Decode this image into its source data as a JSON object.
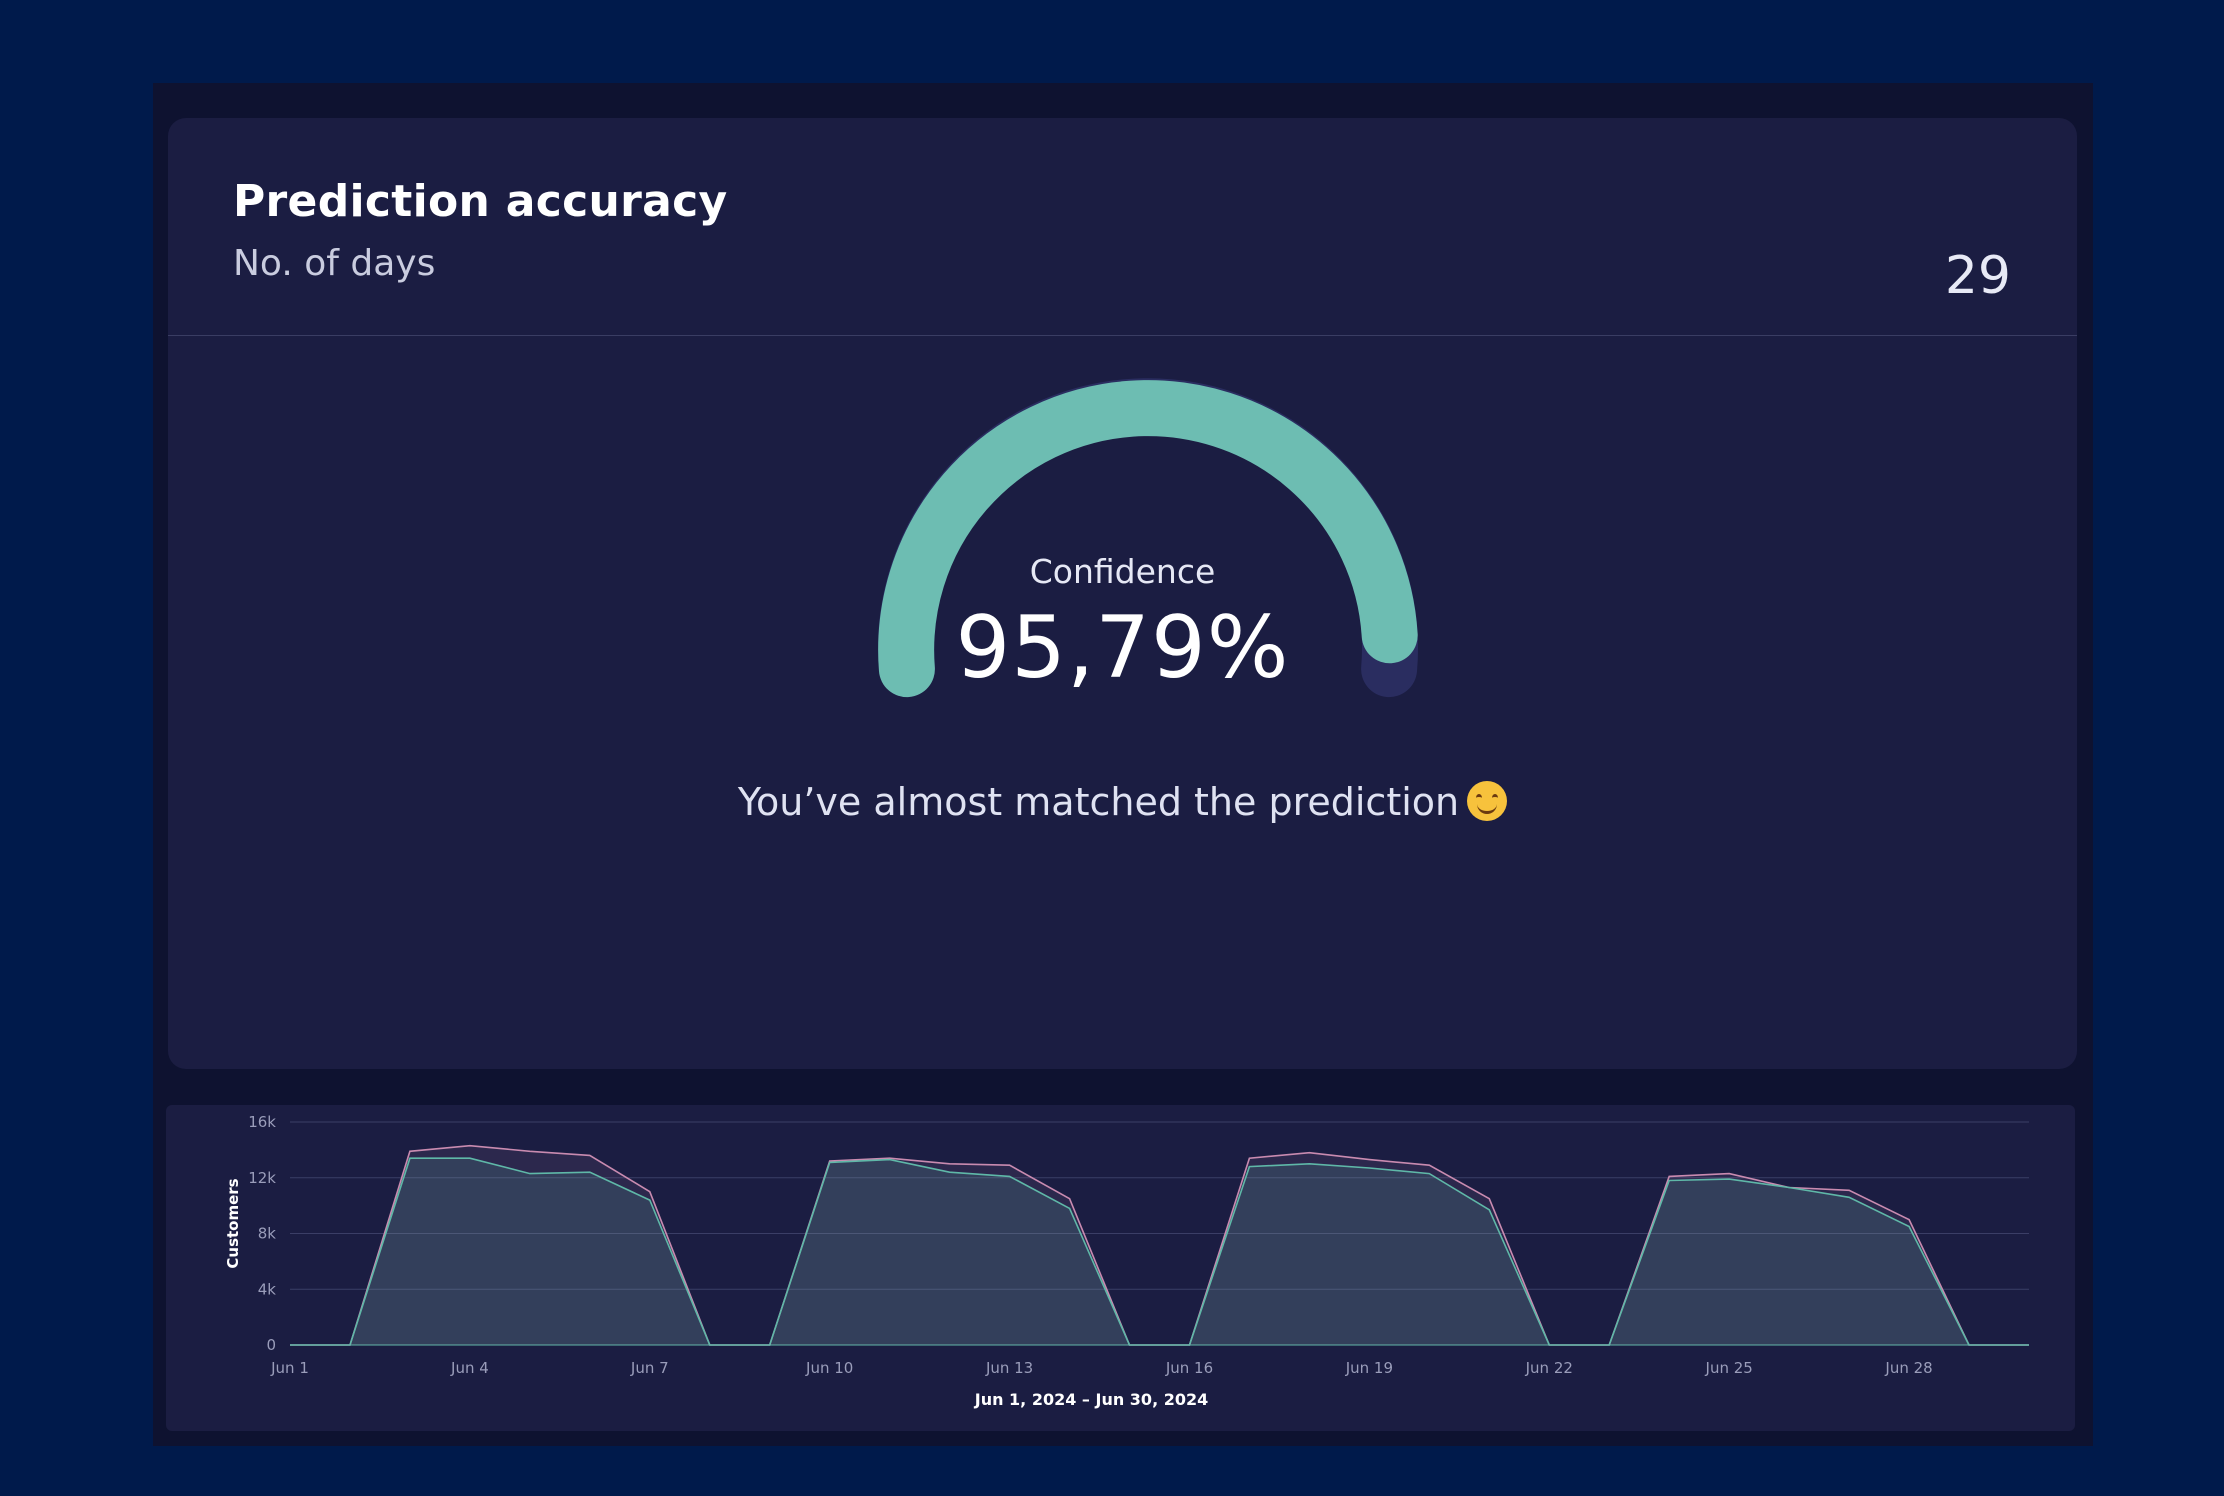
{
  "card": {
    "title": "Prediction accuracy",
    "subtitle": "No. of days",
    "days_value": "29"
  },
  "gauge": {
    "label": "Confidence",
    "value_text": "95,79%",
    "value_percent": 95.79,
    "fill_color": "#6dbdb2",
    "track_color": "#2a2d60"
  },
  "message": {
    "text": "You’ve almost matched the prediction",
    "emoji": "smiling-face-icon"
  },
  "chart_data": {
    "type": "area",
    "xlabel": "Jun 1, 2024 – Jun 30, 2024",
    "ylabel": "Customers",
    "ylim": [
      0,
      16000
    ],
    "yticks": [
      0,
      4000,
      8000,
      12000,
      16000
    ],
    "ytick_labels": [
      "0",
      "4k",
      "8k",
      "12k",
      "16k"
    ],
    "xtick_labels": [
      "Jun 1",
      "Jun 4",
      "Jun 7",
      "Jun 10",
      "Jun 13",
      "Jun 16",
      "Jun 19",
      "Jun 22",
      "Jun 25",
      "Jun 28"
    ],
    "xticks_days": [
      1,
      4,
      7,
      10,
      13,
      16,
      19,
      22,
      25,
      28
    ],
    "x": [
      1,
      2,
      3,
      4,
      5,
      6,
      7,
      8,
      9,
      10,
      11,
      12,
      13,
      14,
      15,
      16,
      17,
      18,
      19,
      20,
      21,
      22,
      23,
      24,
      25,
      26,
      27,
      28,
      29,
      30
    ],
    "grid": true,
    "series": [
      {
        "color": "#c98bb0",
        "values": [
          0,
          0,
          13900,
          14300,
          13900,
          13600,
          11000,
          0,
          0,
          13200,
          13400,
          13000,
          12900,
          10500,
          0,
          0,
          13400,
          13800,
          13300,
          12900,
          10500,
          0,
          0,
          12100,
          12300,
          11300,
          11100,
          9000,
          0,
          0
        ]
      },
      {
        "color": "#5fb8a8",
        "values": [
          0,
          0,
          13400,
          13400,
          12300,
          12400,
          10400,
          0,
          0,
          13100,
          13300,
          12400,
          12100,
          9800,
          0,
          0,
          12800,
          13000,
          12700,
          12300,
          9700,
          0,
          0,
          11800,
          11900,
          11300,
          10600,
          8500,
          0,
          0
        ]
      }
    ]
  }
}
